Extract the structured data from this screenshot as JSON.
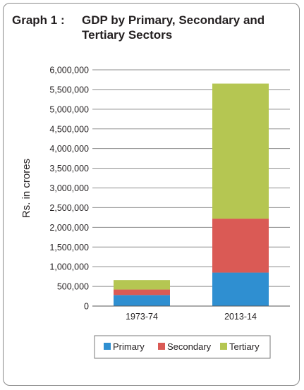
{
  "title": {
    "prefix": "Graph 1 :",
    "text": "GDP by Primary, Secondary and Tertiary Sectors"
  },
  "chart_data": {
    "type": "bar",
    "stacked": true,
    "categories": [
      "1973-74",
      "2013-14"
    ],
    "series": [
      {
        "name": "Primary",
        "color": "#2f8fd1",
        "values": [
          280000,
          850000
        ]
      },
      {
        "name": "Secondary",
        "color": "#da5a55",
        "values": [
          140000,
          1370000
        ]
      },
      {
        "name": "Tertiary",
        "color": "#b5c652",
        "values": [
          240000,
          3430000
        ]
      }
    ],
    "ylabel": "Rs. in crores",
    "xlabel": "",
    "ylim": [
      0,
      6000000
    ],
    "yticks": [
      {
        "value": 0,
        "label": "0"
      },
      {
        "value": 500000,
        "label": "500,000"
      },
      {
        "value": 1000000,
        "label": "1,000,000"
      },
      {
        "value": 1500000,
        "label": "1,500,000"
      },
      {
        "value": 2000000,
        "label": "2,000,000"
      },
      {
        "value": 2500000,
        "label": "2,500,000"
      },
      {
        "value": 3000000,
        "label": "3,000,000"
      },
      {
        "value": 3500000,
        "label": "3,500,000"
      },
      {
        "value": 4000000,
        "label": "4,000,000"
      },
      {
        "value": 4500000,
        "label": "4,500,000"
      },
      {
        "value": 5000000,
        "label": "5,000,000"
      },
      {
        "value": 5500000,
        "label": "5,500,000"
      },
      {
        "value": 6000000,
        "label": "6,000,000"
      }
    ],
    "grid": true,
    "legend_position": "bottom"
  }
}
